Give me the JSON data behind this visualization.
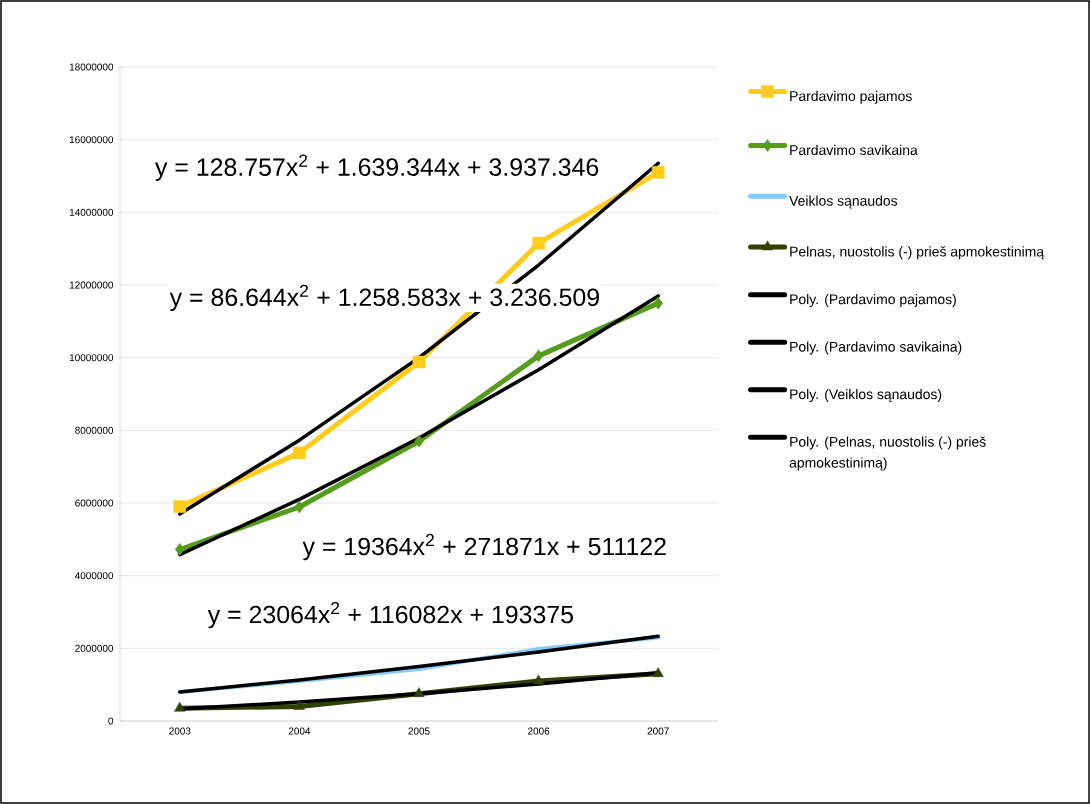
{
  "chart_data": {
    "type": "line",
    "categories": [
      "2003",
      "2004",
      "2005",
      "2006",
      "2007"
    ],
    "series": [
      {
        "name": "Pardavimo pajamos",
        "color": "#ffcc1a",
        "marker": "square",
        "values": [
          5900000,
          7380000,
          9880000,
          13150000,
          15100000
        ]
      },
      {
        "name": "Pardavimo savikaina",
        "color": "#579d1c",
        "marker": "diamond",
        "values": [
          4720000,
          5890000,
          7700000,
          10050000,
          11500000
        ]
      },
      {
        "name": "Veiklos sąnaudos",
        "color": "#83caff",
        "marker": "none",
        "values": [
          800000,
          1100000,
          1430000,
          1980000,
          2300000
        ]
      },
      {
        "name": "Pelnas, nuostolis (-) prieš apmokestinimą",
        "color": "#314004",
        "marker": "triangle",
        "values": [
          350000,
          400000,
          750000,
          1100000,
          1300000
        ]
      },
      {
        "name": "Poly. (Pardavimo pajamos)",
        "color": "#000000",
        "marker": "none",
        "values": [
          5700000,
          7730000,
          10000000,
          12550000,
          15350000
        ]
      },
      {
        "name": "Poly. (Pardavimo savikaina)",
        "color": "#000000",
        "marker": "none",
        "values": [
          4580000,
          6100000,
          7790000,
          9670000,
          11700000
        ]
      },
      {
        "name": "Poly. (Veiklos sąnaudos)",
        "color": "#000000",
        "marker": "none",
        "values": [
          800000,
          1130000,
          1500000,
          1900000,
          2330000
        ]
      },
      {
        "name": "Poly. (Pelnas, nuostolis (-) prieš apmokestinimą)",
        "color": "#000000",
        "marker": "none",
        "values": [
          330000,
          520000,
          750000,
          1020000,
          1330000
        ]
      }
    ],
    "ylim": [
      0,
      18000000
    ],
    "yticks": [
      0,
      2000000,
      4000000,
      6000000,
      8000000,
      10000000,
      12000000,
      14000000,
      16000000,
      18000000
    ],
    "grid": "y",
    "legend": "right",
    "line_style": "solid",
    "annotations": [
      "y = 128.757x$^{2}$ + 1.639.344x + 3.937.346",
      "y = 86.644x$^{2}$ + 1.258.583x + 3.236.509",
      "y = 19364x$^{2}$ + 271871x + 511122",
      "y = 23064x$^{2}$ + 116082x + 193375"
    ]
  }
}
